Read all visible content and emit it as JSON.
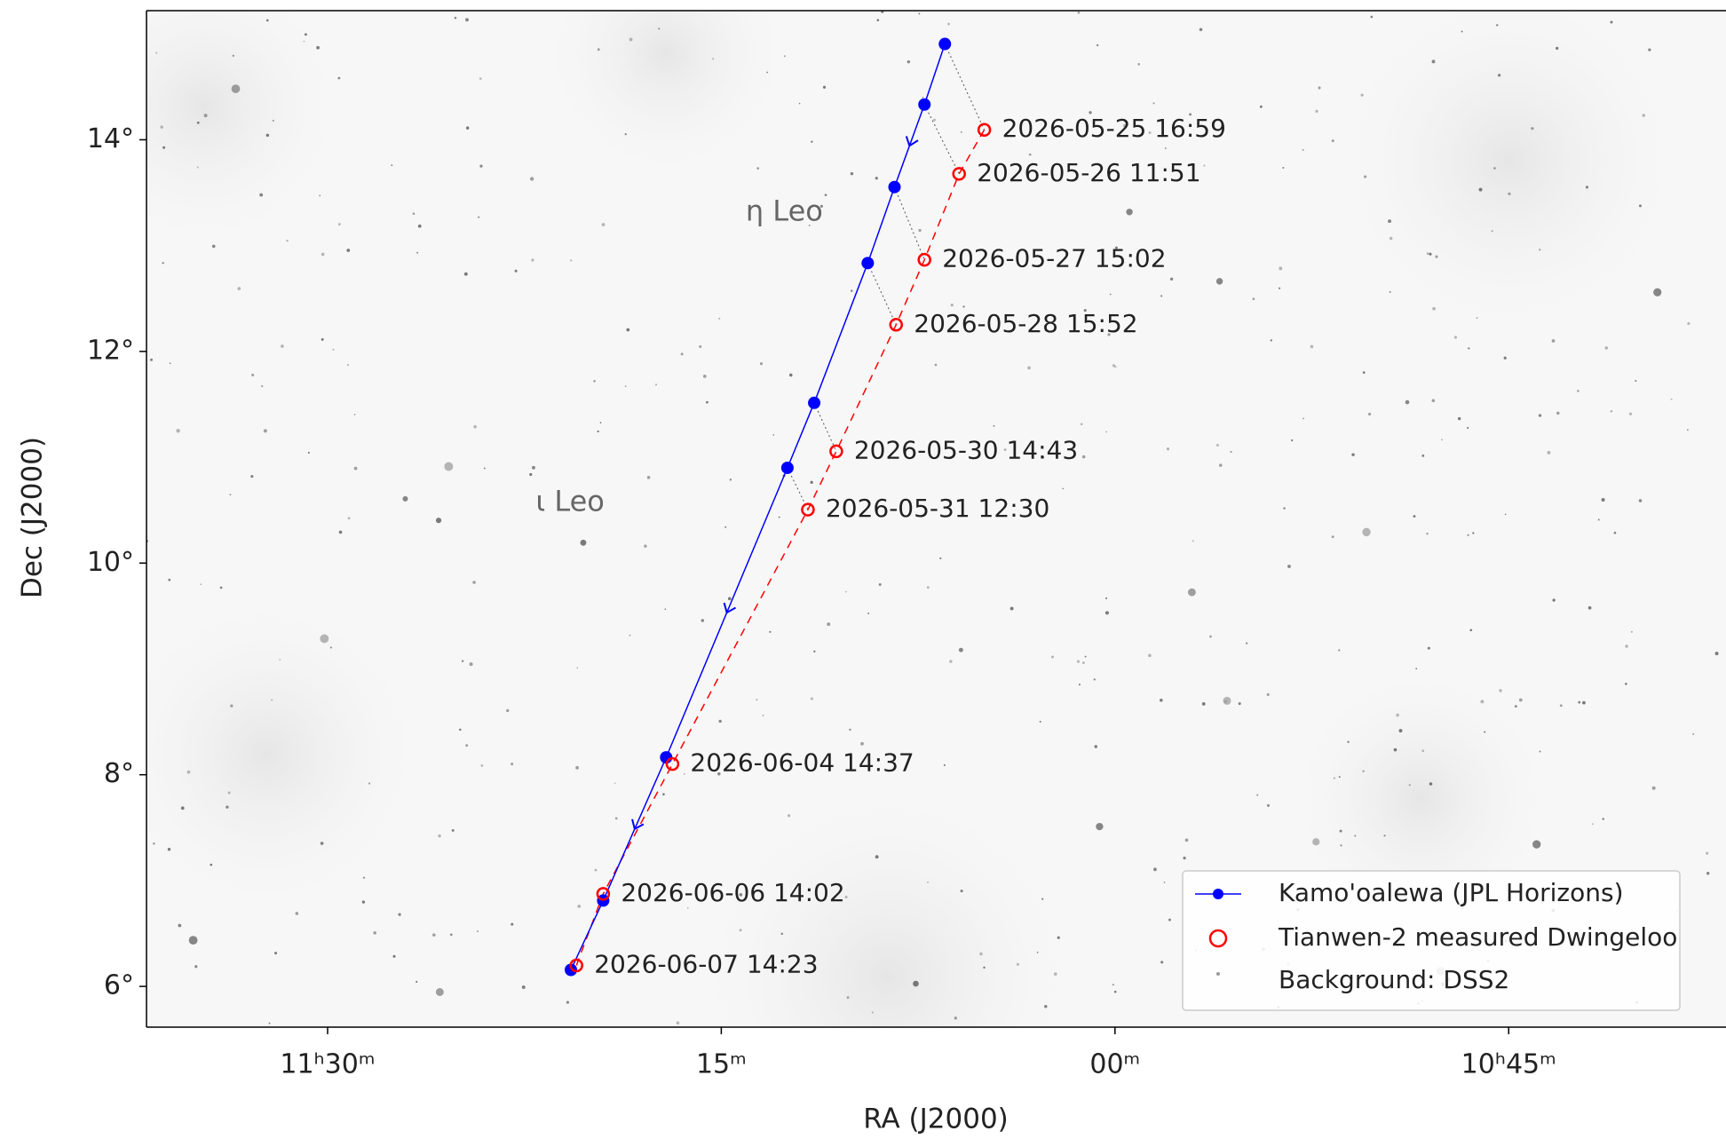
{
  "chart_data": {
    "type": "scatter",
    "x_label": "RA (J2000)",
    "y_label": "Dec (J2000)",
    "xlim": [
      11.615,
      10.612
    ],
    "ylim": [
      5.615,
      15.22
    ],
    "xticks": [
      {
        "value": 11.5,
        "label": "11ʰ30ᵐ"
      },
      {
        "value": 11.25,
        "label": "15ᵐ"
      },
      {
        "value": 11.0,
        "label": "00ᵐ"
      },
      {
        "value": 10.75,
        "label": "10ʰ45ᵐ"
      }
    ],
    "yticks": [
      {
        "value": 14,
        "label": "14°"
      },
      {
        "value": 12,
        "label": "12°"
      },
      {
        "value": 10,
        "label": "10°"
      },
      {
        "value": 8,
        "label": "8°"
      },
      {
        "value": 6,
        "label": "6°"
      }
    ],
    "legend_position": "lower right",
    "background_label": "Background: DSS2",
    "series": [
      {
        "name": "Kamo'oalewa (JPL Horizons)",
        "color": "#0000ff",
        "style": "line-dot",
        "x": [
          11.108,
          11.121,
          11.14,
          11.157,
          11.191,
          11.208,
          11.285,
          11.325,
          11.3455
        ],
        "values": [
          14.905,
          14.333,
          13.553,
          12.835,
          11.514,
          10.9,
          8.164,
          6.811,
          6.156
        ]
      },
      {
        "name": "Tianwen-2 measured Dwingeloo",
        "color": "#ff0000",
        "style": "open-circle",
        "x": [
          11.083,
          11.099,
          11.121,
          11.139,
          11.177,
          11.195,
          11.281,
          11.325,
          11.342
        ],
        "values": [
          14.094,
          13.678,
          12.866,
          12.252,
          11.056,
          10.505,
          8.101,
          6.874,
          6.198
        ],
        "point_labels": [
          "2026-05-25 16:59",
          "2026-05-26 11:51",
          "2026-05-27 15:02",
          "2026-05-28 15:52",
          "2026-05-30 14:43",
          "2026-05-31 12:30",
          "2026-06-04 14:37",
          "2026-06-06 14:02",
          "2026-06-07 14:23"
        ]
      }
    ],
    "annotations": [
      {
        "text": "η Leo",
        "x": 11.21,
        "y": 13.313
      },
      {
        "text": "ι Leo",
        "x": 11.346,
        "y": 10.567
      }
    ]
  }
}
